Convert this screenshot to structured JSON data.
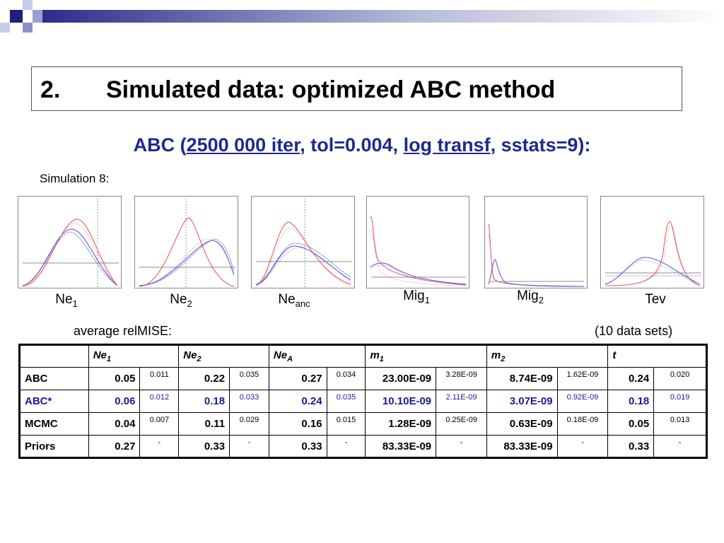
{
  "title": {
    "number": "2.",
    "text": "Simulated data: optimized ABC method"
  },
  "subtitle": {
    "prefix": "ABC (",
    "iter": "2500 000 iter",
    "tol": ", tol=0.004, ",
    "transf": "log transf",
    "suffix": ", sstats=9):"
  },
  "simulation_label": "Simulation 8:",
  "plots": [
    {
      "label": "Ne",
      "sub": "1"
    },
    {
      "label": "Ne",
      "sub": "2"
    },
    {
      "label": "Ne",
      "sub": "anc"
    },
    {
      "label": "Mig",
      "sub": "1"
    },
    {
      "label": "Mig",
      "sub": "2"
    },
    {
      "label": "Tev",
      "sub": ""
    }
  ],
  "average_label": "average relMISE:",
  "datasets_label": "(10 data sets)",
  "table": {
    "headers": [
      {
        "main": "Ne",
        "sub": "1"
      },
      {
        "main": "Ne",
        "sub": "2"
      },
      {
        "main": "Ne",
        "sub": "A"
      },
      {
        "main": "m",
        "sub": "1"
      },
      {
        "main": "m",
        "sub": "2"
      },
      {
        "main": "t",
        "sub": ""
      }
    ],
    "rows": [
      {
        "name": "ABC",
        "cells": [
          [
            "0.05",
            "0.011"
          ],
          [
            "0.22",
            "0.035"
          ],
          [
            "0.27",
            "0.034"
          ],
          [
            "23.00E-09",
            "3.28E-09"
          ],
          [
            "8.74E-09",
            "1.62E-09"
          ],
          [
            "0.24",
            "0.020"
          ]
        ]
      },
      {
        "name": "ABC*",
        "cells": [
          [
            "0.06",
            "0.012"
          ],
          [
            "0.18",
            "0.033"
          ],
          [
            "0.24",
            "0.035"
          ],
          [
            "10.10E-09",
            "2.11E-09"
          ],
          [
            "3.07E-09",
            "0.92E-09"
          ],
          [
            "0.18",
            "0.019"
          ]
        ]
      },
      {
        "name": "MCMC",
        "cells": [
          [
            "0.04",
            "0.007"
          ],
          [
            "0.11",
            "0.029"
          ],
          [
            "0.16",
            "0.015"
          ],
          [
            "1.28E-09",
            "0.25E-09"
          ],
          [
            "0.63E-09",
            "0.18E-09"
          ],
          [
            "0.05",
            "0.013"
          ]
        ]
      },
      {
        "name": "Priors",
        "cells": [
          [
            "0.27",
            "-"
          ],
          [
            "0.33",
            "-"
          ],
          [
            "0.33",
            "-"
          ],
          [
            "83.33E-09",
            "-"
          ],
          [
            "83.33E-09",
            "-"
          ],
          [
            "0.33",
            "-"
          ]
        ]
      }
    ]
  },
  "colors": {
    "title_blue": "#1f2a8c",
    "abc_star_row": "#1a1a9a",
    "posterior_red": "#e05050",
    "posterior_blue": "#5050d0"
  }
}
